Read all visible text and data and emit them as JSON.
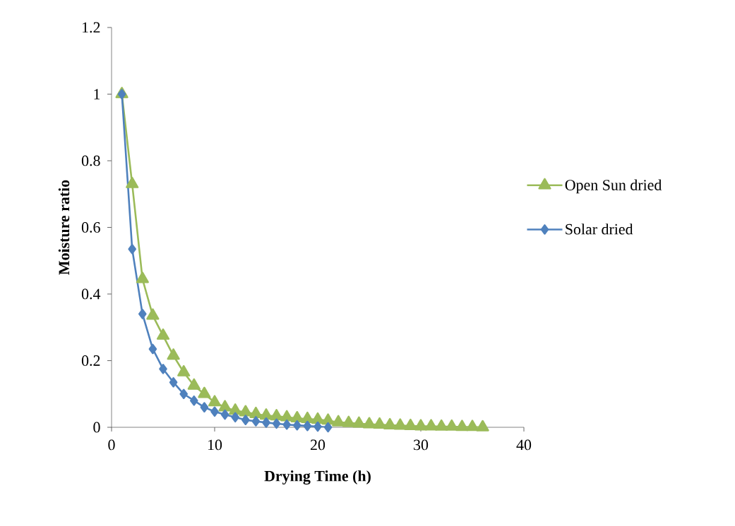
{
  "chart_data": {
    "type": "line",
    "xlabel": "Drying Time (h)",
    "ylabel": "Moisture ratio",
    "xlim": [
      0,
      40
    ],
    "xticks": [
      0,
      10,
      20,
      30,
      40
    ],
    "ylim": [
      0,
      1.2
    ],
    "yticks": [
      0,
      {
        "value": 0.2,
        "label": "0.2"
      },
      {
        "value": 0.4,
        "label": "0.4"
      },
      {
        "value": 0.6,
        "label": "0.6"
      },
      {
        "value": 0.8,
        "label": "0.8"
      },
      1,
      {
        "value": 1.2,
        "label": "1.2"
      }
    ],
    "grid": false,
    "legend": "right",
    "line_style": "solid",
    "series": [
      {
        "name": "Open Sun dried",
        "color": "#9bbb59",
        "marker": "triangle",
        "x": [
          1,
          2,
          3,
          4,
          5,
          6,
          7,
          8,
          9,
          10,
          11,
          12,
          13,
          14,
          15,
          16,
          17,
          18,
          19,
          20,
          21,
          22,
          23,
          24,
          25,
          26,
          27,
          28,
          29,
          30,
          31,
          32,
          33,
          34,
          35,
          36
        ],
        "values": [
          1,
          0.73,
          0.445,
          0.335,
          0.275,
          0.215,
          0.165,
          0.125,
          0.1,
          0.075,
          0.06,
          0.05,
          0.045,
          0.04,
          0.035,
          0.033,
          0.03,
          0.027,
          0.025,
          0.023,
          0.02,
          0.015,
          0.013,
          0.011,
          0.009,
          0.008,
          0.006,
          0.005,
          0.004,
          0.003,
          0.003,
          0.002,
          0.002,
          0.001,
          0.001,
          0
        ]
      },
      {
        "name": "Solar dried",
        "color": "#4f81bd",
        "marker": "diamond",
        "x": [
          1,
          2,
          3,
          4,
          5,
          6,
          7,
          8,
          9,
          10,
          11,
          12,
          13,
          14,
          15,
          16,
          17,
          18,
          19,
          20,
          21
        ],
        "values": [
          1,
          0.535,
          0.34,
          0.235,
          0.175,
          0.135,
          0.1,
          0.08,
          0.06,
          0.047,
          0.038,
          0.03,
          0.022,
          0.018,
          0.014,
          0.011,
          0.008,
          0.006,
          0.004,
          0.002,
          0
        ]
      }
    ]
  }
}
